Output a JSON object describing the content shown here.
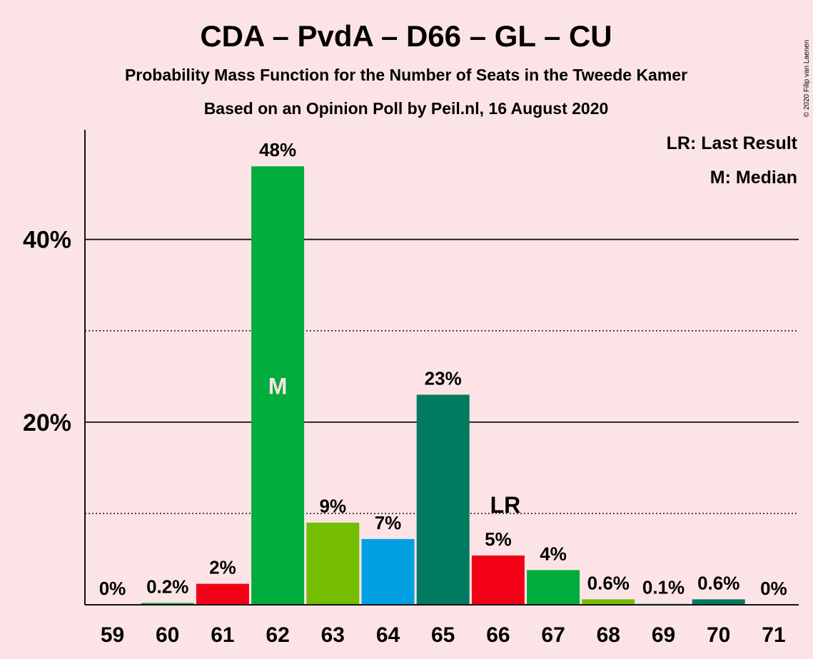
{
  "title": "CDA – PvdA – D66 – GL – CU",
  "subtitle_1": "Probability Mass Function for the Number of Seats in the Tweede Kamer",
  "subtitle_2": "Based on an Opinion Poll by Peil.nl, 16 August 2020",
  "copyright": "© 2020 Filip van Laenen",
  "legend": {
    "last_result": "LR: Last Result",
    "median": "M: Median"
  },
  "chart_data": {
    "type": "bar",
    "title": "CDA – PvdA – D66 – GL – CU",
    "xlabel": "",
    "ylabel": "",
    "ylim": [
      0,
      52
    ],
    "yticks_major": [
      20,
      40
    ],
    "ytick_labels": [
      "20%",
      "40%"
    ],
    "yticks_minor": [
      10,
      30
    ],
    "grid": true,
    "legend_position": "top-right",
    "categories": [
      "59",
      "60",
      "61",
      "62",
      "63",
      "64",
      "65",
      "66",
      "67",
      "68",
      "69",
      "70",
      "71"
    ],
    "values": [
      0,
      0.2,
      2.3,
      48,
      9,
      7.2,
      23,
      5.4,
      3.8,
      0.6,
      0.1,
      0.6,
      0
    ],
    "labels": [
      "0%",
      "0.2%",
      "2%",
      "48%",
      "9%",
      "7%",
      "23%",
      "5%",
      "4%",
      "0.6%",
      "0.1%",
      "0.6%",
      "0%"
    ],
    "colors": [
      "#00ac3c",
      "#00ac3c",
      "#f20016",
      "#00ac3c",
      "#75bd00",
      "#009fe2",
      "#007b5f",
      "#f20016",
      "#00ac3c",
      "#75bd00",
      "#009fe2",
      "#007b5f",
      "#f20016"
    ],
    "median": {
      "category": "62",
      "label": "M"
    },
    "last_result": {
      "category": "66",
      "label": "LR"
    }
  }
}
